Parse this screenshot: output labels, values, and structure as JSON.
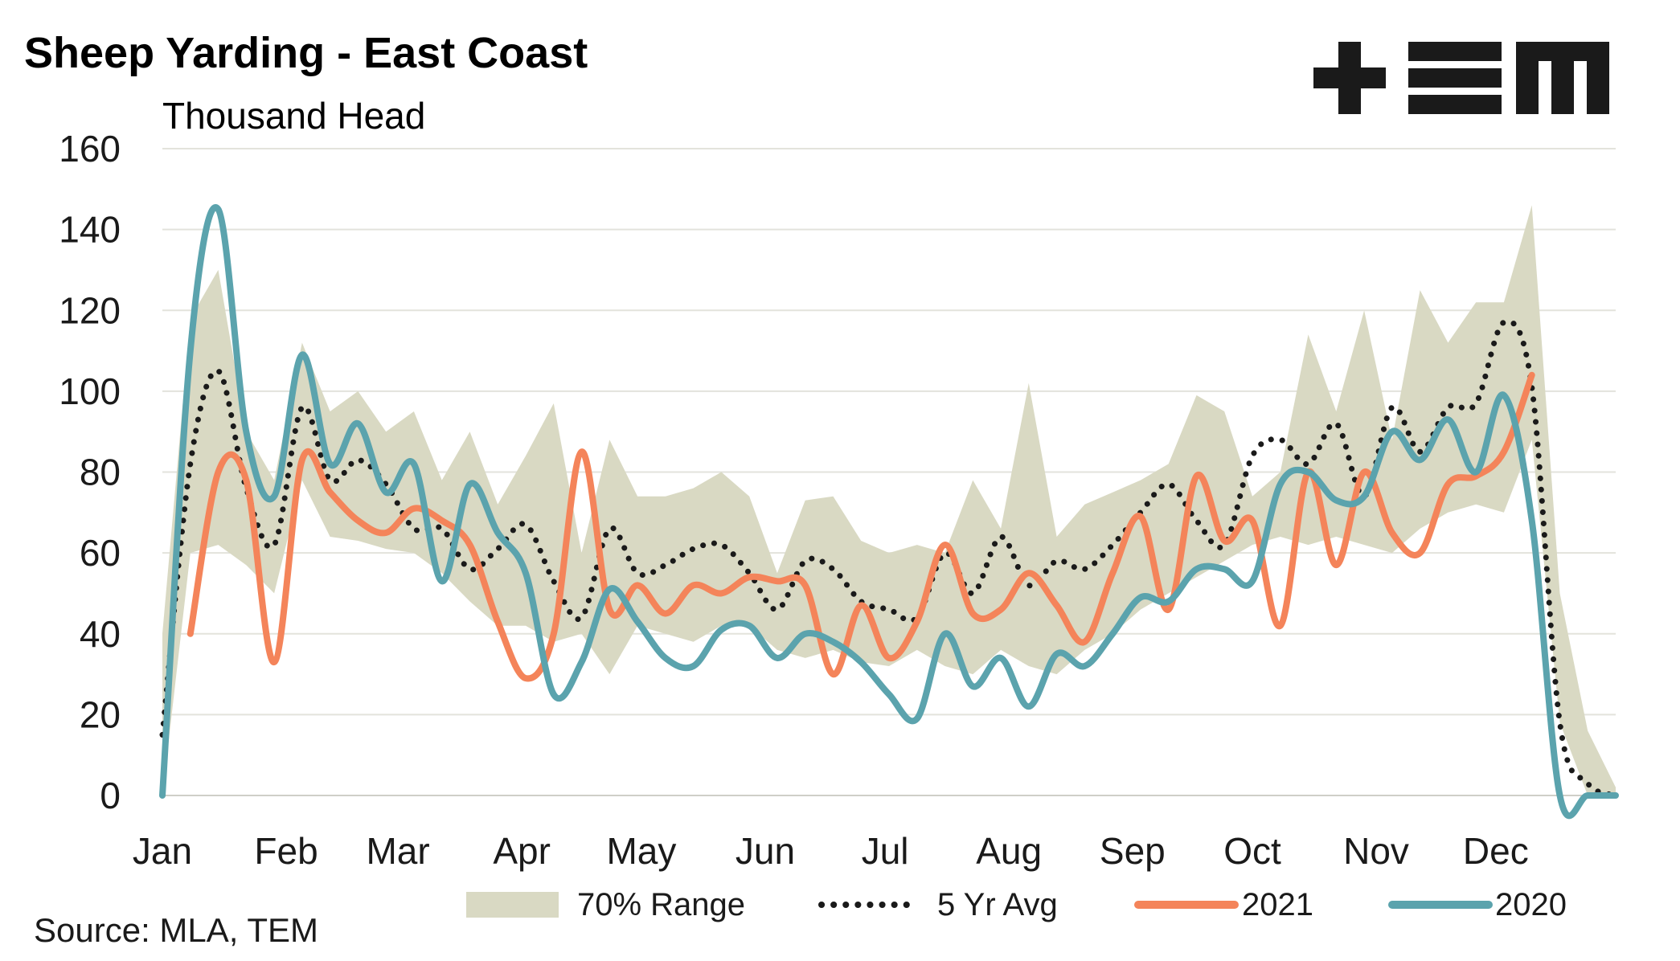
{
  "title": "Sheep Yarding - East Coast",
  "logo_text": "TEM",
  "source": "Source: MLA, TEM",
  "colors": {
    "range": "#d9d9c3",
    "avg": "#1a1a1a",
    "y2021": "#f4845a",
    "y2020": "#5ba3ad",
    "grid": "#e3e3dc"
  },
  "chart_data": {
    "type": "line",
    "ylabel": "Thousand Head",
    "ylim": [
      0,
      160
    ],
    "yticks": [
      0,
      20,
      40,
      60,
      80,
      100,
      120,
      140,
      160
    ],
    "x_range": [
      1,
      53
    ],
    "month_ticks": [
      {
        "label": "Jan",
        "week": 1
      },
      {
        "label": "Feb",
        "week": 5.43
      },
      {
        "label": "Mar",
        "week": 9.43
      },
      {
        "label": "Apr",
        "week": 13.86
      },
      {
        "label": "May",
        "week": 18.14
      },
      {
        "label": "Jun",
        "week": 22.57
      },
      {
        "label": "Jul",
        "week": 26.86
      },
      {
        "label": "Aug",
        "week": 31.29
      },
      {
        "label": "Sep",
        "week": 35.71
      },
      {
        "label": "Oct",
        "week": 40
      },
      {
        "label": "Nov",
        "week": 44.43
      },
      {
        "label": "Dec",
        "week": 48.71
      }
    ],
    "grid": true,
    "legend_position": "bottom",
    "range_70": {
      "name": "70% Range",
      "x": [
        1,
        2,
        3,
        4,
        5,
        6,
        7,
        8,
        9,
        10,
        11,
        12,
        13,
        14,
        15,
        16,
        17,
        18,
        19,
        20,
        21,
        22,
        23,
        24,
        25,
        26,
        27,
        28,
        29,
        30,
        31,
        32,
        33,
        34,
        35,
        36,
        37,
        38,
        39,
        40,
        41,
        42,
        43,
        44,
        45,
        46,
        47,
        48,
        49,
        50,
        51,
        52,
        53
      ],
      "low": [
        0,
        60,
        62,
        57,
        50,
        78,
        64,
        63,
        61,
        60,
        55,
        48,
        42,
        42,
        38,
        40,
        30,
        42,
        40,
        38,
        42,
        42,
        36,
        34,
        36,
        33,
        32,
        36,
        32,
        30,
        36,
        32,
        30,
        36,
        40,
        46,
        50,
        54,
        58,
        62,
        64,
        62,
        64,
        62,
        60,
        66,
        70,
        72,
        70,
        88,
        18,
        0,
        0
      ],
      "high": [
        40,
        118,
        130,
        90,
        78,
        112,
        95,
        100,
        90,
        95,
        78,
        90,
        72,
        84,
        97,
        60,
        88,
        74,
        74,
        76,
        80,
        74,
        55,
        73,
        74,
        63,
        60,
        62,
        60,
        78,
        66,
        102,
        64,
        72,
        75,
        78,
        82,
        99,
        95,
        74,
        80,
        114,
        95,
        120,
        88,
        125,
        112,
        122,
        122,
        146,
        50,
        16,
        2
      ]
    },
    "series": [
      {
        "name": "5 Yr Avg",
        "x": [
          1,
          2,
          3,
          4,
          5,
          6,
          7,
          8,
          9,
          10,
          11,
          12,
          13,
          14,
          15,
          16,
          17,
          18,
          19,
          20,
          21,
          22,
          23,
          24,
          25,
          26,
          27,
          28,
          29,
          30,
          31,
          32,
          33,
          34,
          35,
          36,
          37,
          38,
          39,
          40,
          41,
          42,
          43,
          44,
          45,
          46,
          47,
          48,
          49,
          50,
          51,
          52,
          53
        ],
        "values": [
          15,
          82,
          105,
          76,
          62,
          96,
          78,
          83,
          77,
          66,
          66,
          56,
          61,
          67,
          53,
          44,
          66,
          55,
          57,
          61,
          62,
          55,
          46,
          58,
          56,
          48,
          46,
          44,
          60,
          50,
          64,
          52,
          58,
          56,
          62,
          70,
          77,
          68,
          62,
          84,
          88,
          82,
          92,
          74,
          96,
          85,
          96,
          97,
          117,
          101,
          18,
          3,
          0
        ]
      },
      {
        "name": "2021",
        "x": [
          2,
          3,
          4,
          5,
          6,
          7,
          8,
          9,
          10,
          11,
          12,
          13,
          14,
          15,
          16,
          17,
          18,
          19,
          20,
          21,
          22,
          23,
          24,
          25,
          26,
          27,
          28,
          29,
          30,
          31,
          32,
          33,
          34,
          35,
          36,
          37,
          38,
          39,
          40,
          41,
          42,
          43,
          44,
          45,
          46,
          47,
          48,
          49,
          50
        ],
        "values": [
          40,
          80,
          78,
          33,
          83,
          75,
          68,
          65,
          71,
          68,
          62,
          43,
          29,
          40,
          85,
          46,
          52,
          45,
          52,
          50,
          54,
          53,
          52,
          30,
          47,
          34,
          43,
          62,
          45,
          46,
          55,
          47,
          38,
          55,
          69,
          46,
          79,
          63,
          68,
          42,
          80,
          57,
          80,
          65,
          60,
          77,
          79,
          85,
          104
        ]
      },
      {
        "name": "2020",
        "x": [
          1,
          2,
          3,
          4,
          5,
          6,
          7,
          8,
          9,
          10,
          11,
          12,
          13,
          14,
          15,
          16,
          17,
          18,
          19,
          20,
          21,
          22,
          23,
          24,
          25,
          26,
          27,
          28,
          29,
          30,
          31,
          32,
          33,
          34,
          35,
          36,
          37,
          38,
          39,
          40,
          41,
          42,
          43,
          44,
          45,
          46,
          47,
          48,
          49,
          50,
          51,
          52,
          53
        ],
        "values": [
          0,
          110,
          145,
          90,
          74,
          109,
          82,
          92,
          75,
          82,
          53,
          77,
          65,
          55,
          25,
          33,
          51,
          43,
          34,
          32,
          41,
          42,
          34,
          40,
          38,
          33,
          25,
          19,
          40,
          27,
          34,
          22,
          35,
          32,
          40,
          49,
          48,
          56,
          56,
          53,
          77,
          80,
          73,
          74,
          90,
          83,
          93,
          80,
          99,
          68,
          0,
          0,
          0
        ]
      }
    ]
  }
}
